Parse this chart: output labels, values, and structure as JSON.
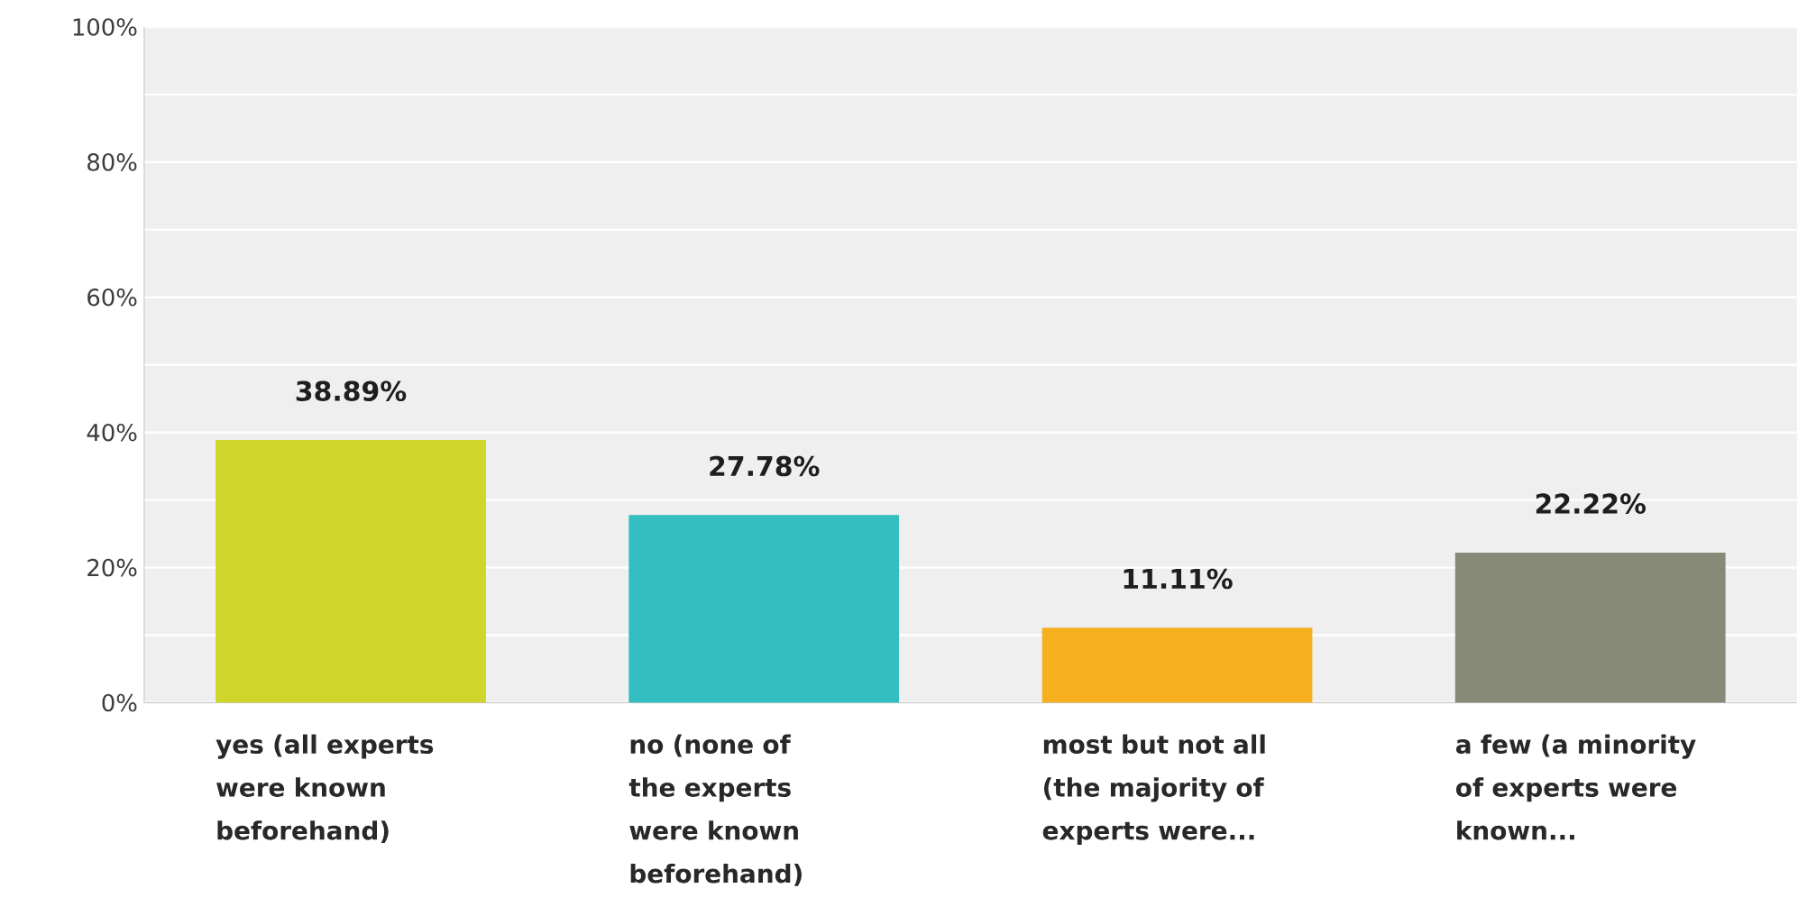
{
  "chart_data": {
    "type": "bar",
    "categories": [
      "yes (all experts were known beforehand)",
      "no (none of the experts were known beforehand)",
      "most but not all (the majority of experts were...",
      "a few (a minority of experts were known..."
    ],
    "values": [
      38.89,
      27.78,
      11.11,
      22.22
    ],
    "colors": [
      "#cfd52a",
      "#33bec1",
      "#f6b01e",
      "#888a78"
    ],
    "value_labels": [
      "38.89%",
      "27.78%",
      "11.11%",
      "22.22%"
    ],
    "ylim": [
      0,
      100
    ],
    "yticks": [
      {
        "value": 0,
        "label": "0%"
      },
      {
        "value": 10,
        "label": null
      },
      {
        "value": 20,
        "label": "20%"
      },
      {
        "value": 30,
        "label": null
      },
      {
        "value": 40,
        "label": "40%"
      },
      {
        "value": 50,
        "label": null
      },
      {
        "value": 60,
        "label": "60%"
      },
      {
        "value": 70,
        "label": null
      },
      {
        "value": 80,
        "label": "80%"
      },
      {
        "value": 90,
        "label": null
      },
      {
        "value": 100,
        "label": "100%"
      }
    ],
    "grid": "y"
  }
}
